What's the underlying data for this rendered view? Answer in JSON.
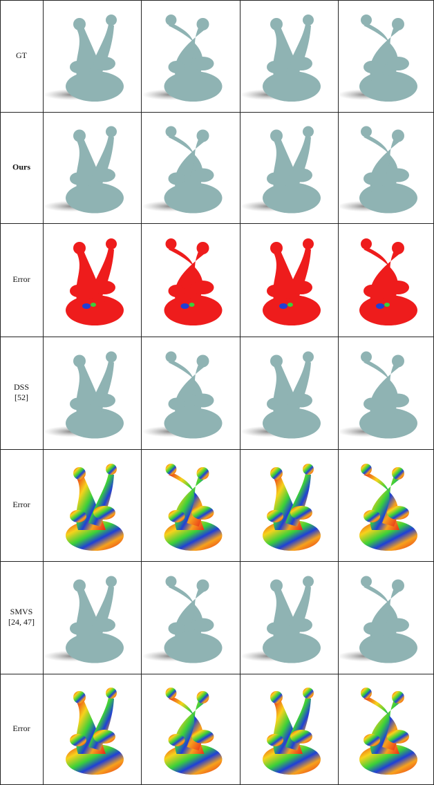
{
  "table": {
    "rows": [
      {
        "label": [
          "GT"
        ]
      },
      {
        "label": [
          "Ours"
        ]
      },
      {
        "label": [
          "Error"
        ]
      },
      {
        "label": [
          "DSS",
          "[52]"
        ]
      },
      {
        "label": [
          "Error"
        ]
      },
      {
        "label": [
          "SMVS",
          "[24, 47]"
        ]
      },
      {
        "label": [
          "Error"
        ]
      }
    ]
  }
}
